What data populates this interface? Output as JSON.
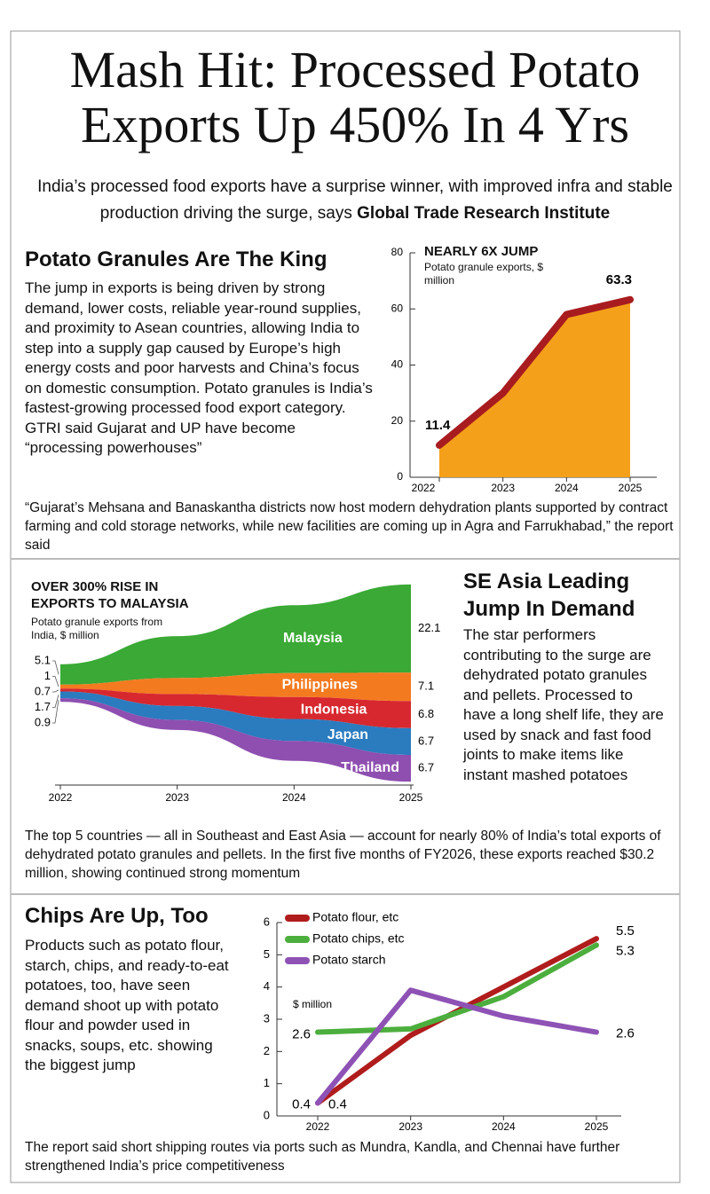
{
  "header": {
    "title": "Mash Hit: Processed Potato Exports Up 450% In 4 Yrs",
    "subtitle": "India’s processed food exports have a surprise winner, with improved infra and stable production driving the surge, says",
    "source": "Global Trade Research Institute"
  },
  "sections": [
    {
      "heading": "Potato Granules Are The King",
      "body": "The jump in exports is being driven by strong demand, lower costs, reliable year-round supplies, and proximity to Asean countries, allowing India to step into a supply gap caused by Europe’s high energy costs and poor harvests and China’s focus on domestic consumption. Potato granules is India’s fastest-growing processed food export category. GTRI said Gujarat and UP have become “processing powerhouses”",
      "note": "“Gujarat’s Mehsana and Banaskantha districts now host modern dehydration plants supported by contract farming and cold storage networks, while new facilities are coming up in Agra and Farrukhabad,” the report said"
    },
    {
      "heading": "SE Asia Leading Jump In Demand",
      "body": "The star performers contributing to the surge are dehydrated potato granules and pellets. Processed to have a long shelf life, they are used by snack and fast food joints to make items like instant mashed potatoes",
      "note": "The top 5 countries — all in Southeast and East Asia — account for nearly 80% of India’s total exports of dehydrated potato granules and pellets. In the first five months of FY2026, these exports reached $30.2 million, showing continued strong momentum"
    },
    {
      "heading": "Chips Are Up, Too",
      "body": "Products such as potato flour, starch, chips, and ready-to-eat potatoes, too, have seen demand shoot up with potato flour and powder used in snacks, soups, etc. showing the biggest jump",
      "note": "The report said short shipping routes via ports such as Mundra, Kandla, and Chennai have further strengthened India’s price competitiveness"
    }
  ],
  "chart_data": [
    {
      "type": "area",
      "title": "NEARLY 6X JUMP",
      "subtitle": "Potato granule exports, $ million",
      "categories": [
        "2022",
        "2023",
        "2024",
        "2025"
      ],
      "values": [
        11.4,
        30,
        58,
        63.3
      ],
      "value_labels": [
        "11.4",
        null,
        null,
        "63.3"
      ],
      "color": "#f5a01a",
      "line_color": "#a81c1f",
      "ylim": [
        0,
        80
      ],
      "yticks": [
        0,
        20,
        40,
        60,
        80
      ]
    },
    {
      "type": "stream",
      "title": "OVER 300% RISE IN EXPORTS TO MALAYSIA",
      "subtitle": "Potato granule exports from India, $ million",
      "categories": [
        "2022",
        "2023",
        "2024",
        "2025"
      ],
      "series": [
        {
          "name": "Malaysia",
          "color": "#3aa935",
          "values": [
            5.1,
            10.5,
            17,
            22.1
          ],
          "value_labels": [
            "5.1",
            null,
            null,
            "22.1"
          ]
        },
        {
          "name": "Philippines",
          "color": "#f47a20",
          "values": [
            1,
            4,
            6,
            7.1
          ],
          "value_labels": [
            "1",
            null,
            null,
            "7.1"
          ]
        },
        {
          "name": "Indonesia",
          "color": "#d7282f",
          "values": [
            0.7,
            3,
            5.5,
            6.8
          ],
          "value_labels": [
            "0.7",
            null,
            null,
            "6.8"
          ]
        },
        {
          "name": "Japan",
          "color": "#2b7bbf",
          "values": [
            1.7,
            3.5,
            5.5,
            6.7
          ],
          "value_labels": [
            "1.7",
            null,
            null,
            "6.7"
          ]
        },
        {
          "name": "Thailand",
          "color": "#8e4fb0",
          "values": [
            0.9,
            2.5,
            5,
            6.7
          ],
          "value_labels": [
            "0.9",
            null,
            null,
            "6.7"
          ]
        }
      ]
    },
    {
      "type": "line",
      "y_label": "$ million",
      "categories": [
        "2022",
        "2023",
        "2024",
        "2025"
      ],
      "series": [
        {
          "name": "Potato flour, etc",
          "color": "#b01c1c",
          "values": [
            0.4,
            2.5,
            4.0,
            5.5
          ],
          "value_labels": [
            "0.4",
            null,
            null,
            "5.5"
          ]
        },
        {
          "name": "Potato chips, etc",
          "color": "#4cae3d",
          "values": [
            2.6,
            2.7,
            3.7,
            5.3
          ],
          "value_labels": [
            "2.6",
            null,
            null,
            "5.3"
          ]
        },
        {
          "name": "Potato starch",
          "color": "#8e52b5",
          "values": [
            0.4,
            3.9,
            3.1,
            2.6
          ],
          "value_labels": [
            "0.4",
            null,
            null,
            "2.6"
          ]
        }
      ],
      "ylim": [
        0,
        6
      ],
      "yticks": [
        0,
        1,
        2,
        3,
        4,
        5,
        6
      ],
      "legend": "upper left"
    }
  ]
}
